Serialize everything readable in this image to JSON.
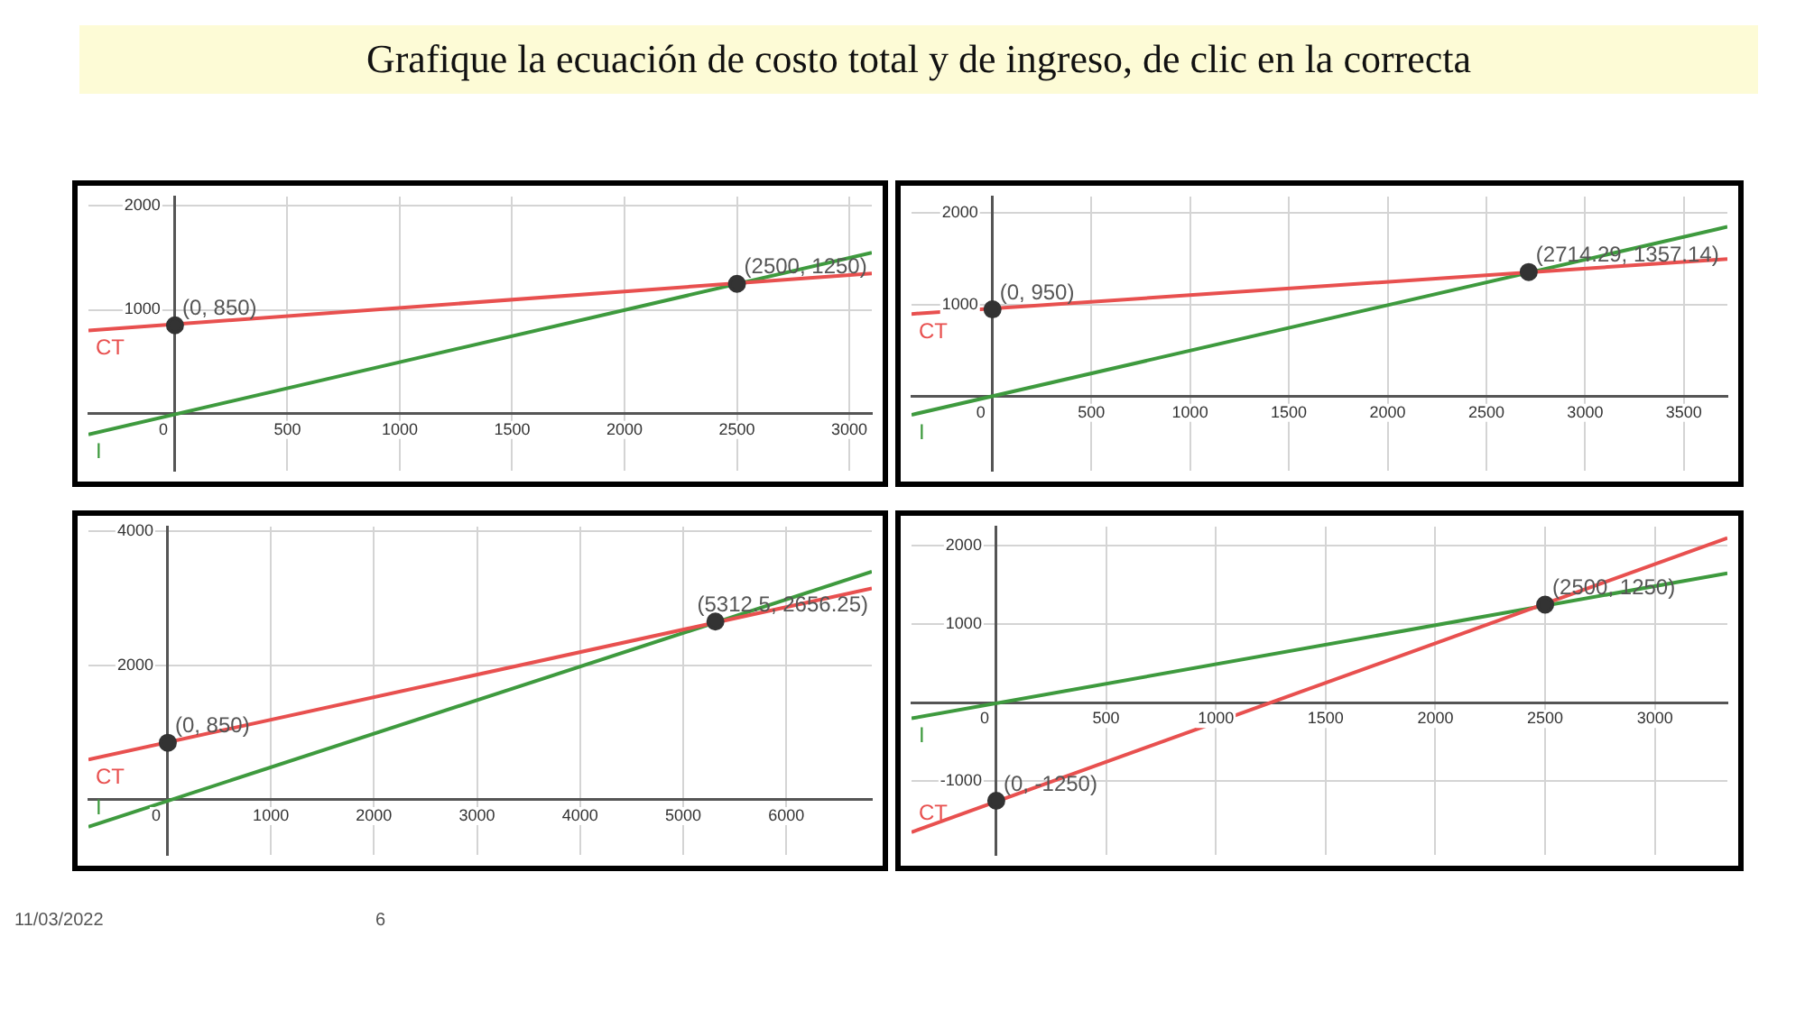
{
  "chart_data": [
    {
      "type": "other",
      "title": "Grafique la ecuación de costo total y de ingreso, de clic en la correcta",
      "annotations": [
        "11/03/2022",
        "6"
      ]
    },
    {
      "type": "line",
      "marker": "none",
      "grid": true,
      "xlim": [
        -385,
        3100
      ],
      "ylim": [
        -550,
        2090
      ],
      "xticks": [
        0,
        500,
        1000,
        1500,
        2000,
        2500,
        3000
      ],
      "yticks": [
        1000,
        2000
      ],
      "series": [
        {
          "name": "CT",
          "color": "#e8504f",
          "x": [
            -385,
            3100
          ],
          "values": [
            800,
            1350
          ]
        },
        {
          "name": "I",
          "color": "#3e9a3e",
          "x": [
            -385,
            3100
          ],
          "values": [
            -200,
            1550
          ]
        },
        {
          "type": "scatter",
          "marker": "circle",
          "color": "#333333",
          "x": [
            0,
            2500
          ],
          "values": [
            850,
            1250
          ],
          "value_labels": [
            "(0, 850)",
            "(2500, 1250)"
          ]
        }
      ]
    },
    {
      "type": "line",
      "marker": "none",
      "grid": true,
      "xlim": [
        -410,
        3720
      ],
      "ylim": [
        -810,
        2180
      ],
      "xticks": [
        0,
        500,
        1000,
        1500,
        2000,
        2500,
        3000,
        3500
      ],
      "yticks": [
        1000,
        2000
      ],
      "series": [
        {
          "name": "CT",
          "color": "#e8504f",
          "x": [
            -410,
            3720
          ],
          "values": [
            900,
            1500
          ]
        },
        {
          "name": "I",
          "color": "#3e9a3e",
          "x": [
            -410,
            3720
          ],
          "values": [
            -200,
            1850
          ]
        },
        {
          "type": "scatter",
          "marker": "circle",
          "color": "#333333",
          "x": [
            0,
            2714.29
          ],
          "values": [
            950,
            1357.14
          ],
          "value_labels": [
            "(0, 950)",
            "(2714.29, 1357.14)"
          ]
        }
      ]
    },
    {
      "type": "line",
      "marker": "none",
      "grid": true,
      "xlim": [
        -770,
        6830
      ],
      "ylim": [
        -820,
        4070
      ],
      "xticks": [
        0,
        1000,
        2000,
        3000,
        4000,
        5000,
        6000
      ],
      "yticks": [
        2000,
        4000
      ],
      "series": [
        {
          "name": "CT",
          "color": "#e8504f",
          "x": [
            -770,
            6830
          ],
          "values": [
            600,
            3150
          ]
        },
        {
          "name": "I",
          "color": "#3e9a3e",
          "x": [
            -770,
            6830
          ],
          "values": [
            -400,
            3400
          ]
        },
        {
          "type": "scatter",
          "marker": "circle",
          "color": "#333333",
          "x": [
            0,
            5312.5
          ],
          "values": [
            850,
            2656.25
          ],
          "value_labels": [
            "(0, 850)",
            "(5312.5, 2656.25)"
          ]
        }
      ]
    },
    {
      "type": "line",
      "marker": "none",
      "grid": true,
      "xlim": [
        -386,
        3330
      ],
      "ylim": [
        -1940,
        2244
      ],
      "xticks": [
        0,
        500,
        1000,
        1500,
        2000,
        2500,
        3000
      ],
      "yticks": [
        -1000,
        1000,
        2000
      ],
      "series": [
        {
          "name": "CT",
          "color": "#e8504f",
          "x": [
            -386,
            3330
          ],
          "values": [
            -1650,
            2100
          ]
        },
        {
          "name": "I",
          "color": "#3e9a3e",
          "x": [
            -386,
            3330
          ],
          "values": [
            -200,
            1650
          ]
        },
        {
          "type": "scatter",
          "marker": "circle",
          "color": "#333333",
          "x": [
            0,
            2500
          ],
          "values": [
            -1250,
            1250
          ],
          "value_labels": [
            "(0, -1250)",
            "(2500, 1250)"
          ]
        }
      ]
    }
  ]
}
